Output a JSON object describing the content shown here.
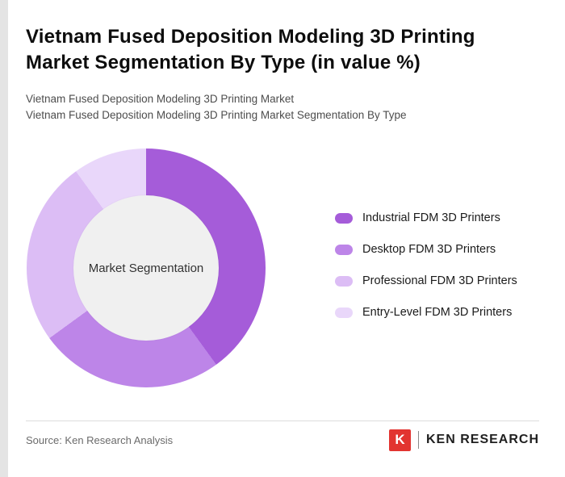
{
  "header": {
    "title": "Vietnam Fused Deposition Modeling 3D Printing Market Segmentation By Type (in value %)",
    "subtitle1": "Vietnam Fused Deposition Modeling 3D Printing Market",
    "subtitle2": "Vietnam Fused Deposition Modeling 3D Printing Market Segmentation By Type"
  },
  "chart_data": {
    "type": "pie",
    "donut": true,
    "center_label": "Market Segmentation",
    "labels": [
      "Industrial FDM 3D Printers",
      "Desktop FDM 3D Printers",
      "Professional FDM 3D Printers",
      "Entry-Level FDM 3D Printers"
    ],
    "values": [
      40,
      25,
      25,
      10
    ],
    "colors": [
      "#a55cd9",
      "#bd85e8",
      "#dcbdf5",
      "#e9d7fa"
    ],
    "legend_position": "right",
    "start_angle_deg": 0,
    "center_background": "#f0f0f0"
  },
  "footer": {
    "source": "Source: Ken Research Analysis",
    "logo_letter": "K",
    "logo_text": "KEN RESEARCH",
    "logo_color": "#e23430"
  }
}
